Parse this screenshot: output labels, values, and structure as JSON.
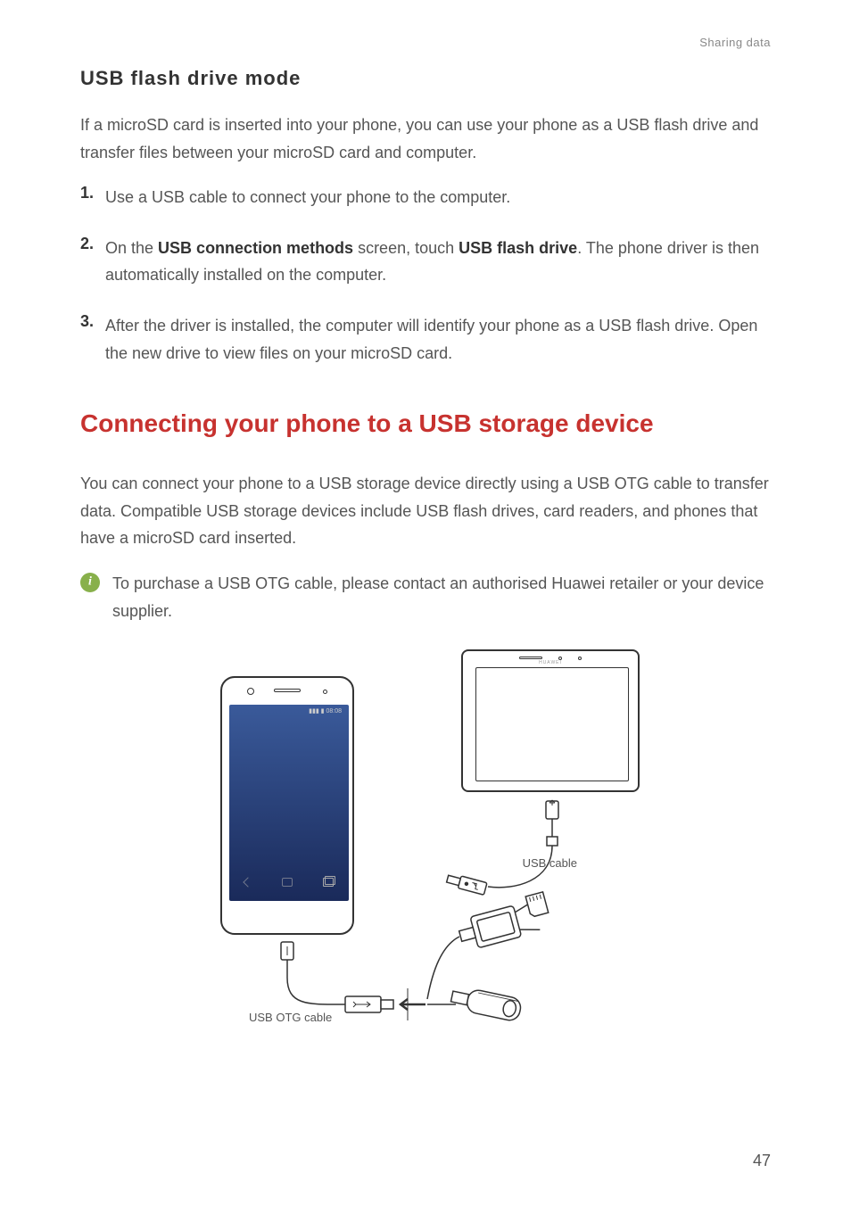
{
  "header": "Sharing data",
  "subheading": "USB flash drive mode",
  "intro": "If a microSD card is inserted into your phone, you can use your phone as a USB flash drive and transfer files between your microSD card and computer.",
  "steps": [
    {
      "num": "1.",
      "html": "Use a USB cable to connect your phone to the computer."
    },
    {
      "num": "2.",
      "html": "On the <span class=\"bold\">USB connection methods</span> screen, touch <span class=\"bold\">USB flash drive</span>. The phone driver is then automatically installed on the computer."
    },
    {
      "num": "3.",
      "html": "After the driver is installed, the computer will identify your phone as a USB flash drive. Open the new drive to view files on your microSD card."
    }
  ],
  "mainHeading": "Connecting your phone to a USB storage device",
  "mainPara": "You can connect your phone to a USB storage device directly using a USB OTG cable to transfer data. Compatible USB storage devices include USB flash drives, card readers, and phones that have a microSD card inserted.",
  "noteText": "To purchase a USB OTG cable, please contact an authorised Huawei retailer or your device supplier.",
  "diagram": {
    "usbCableLabel": "USB cable",
    "otgCableLabel": "USB OTG cable",
    "phoneStatusTime": "08:08",
    "tabletLogo": "HUAWEI"
  },
  "pageNumber": "47",
  "colors": {
    "headingRed": "#c7322f",
    "noteGreen": "#88b04b",
    "bodyText": "#555555",
    "boldText": "#333333"
  }
}
